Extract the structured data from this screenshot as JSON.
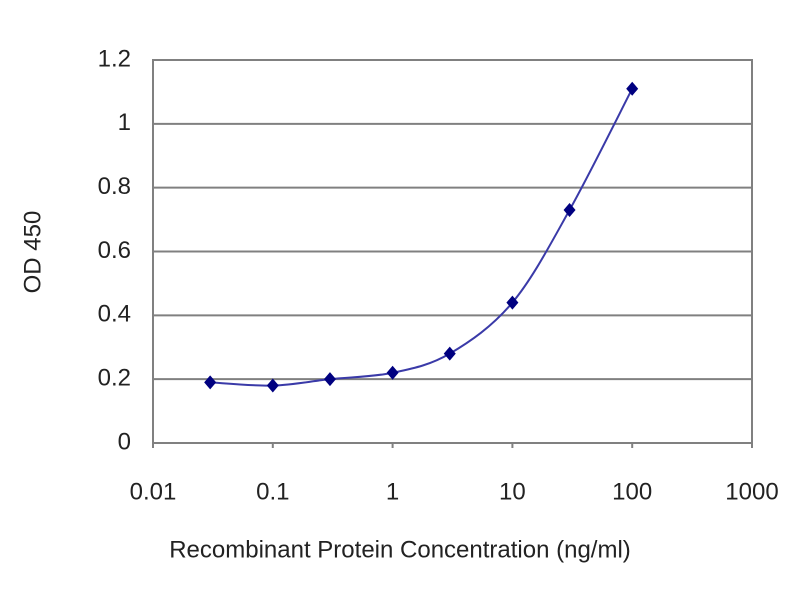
{
  "chart_data": {
    "type": "scatter",
    "x_label": "Recombinant Protein Concentration (ng/ml)",
    "y_label": "OD 450",
    "x": [
      0.03,
      0.1,
      0.3,
      1,
      3,
      10,
      30,
      100
    ],
    "series": [
      {
        "color": "#000080",
        "line_color": "#3a3aa8",
        "values": [
          0.19,
          0.18,
          0.2,
          0.22,
          0.28,
          0.44,
          0.73,
          1.11
        ]
      }
    ],
    "x_log": true,
    "xlim": [
      0.01,
      1000
    ],
    "xticks": [
      0.01,
      0.1,
      1,
      10,
      100,
      1000
    ],
    "ylim": [
      0,
      1.2
    ],
    "yticks": [
      0,
      0.2,
      0.4,
      0.6,
      0.8,
      1,
      1.2
    ],
    "grid": true,
    "smooth_line": true
  }
}
